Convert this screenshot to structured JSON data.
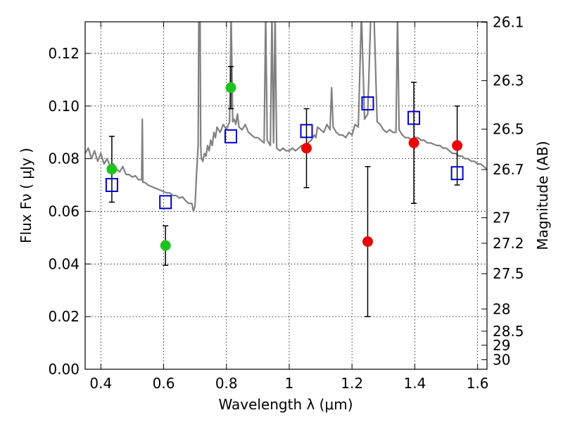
{
  "chart_data": {
    "type": "scatter",
    "xlabel": "Wavelength  λ (μm)",
    "ylabel": "Flux  Fν  ( μJy )",
    "y2label": "Magnitude (AB)",
    "xlim": [
      0.35,
      1.63
    ],
    "ylim": [
      0.0,
      0.132
    ],
    "grid": true,
    "x_ticks": [
      0.4,
      0.6,
      0.8,
      1.0,
      1.2,
      1.4,
      1.6
    ],
    "x_tick_labels": [
      "0.4",
      "0.6",
      "0.8",
      "1",
      "1.2",
      "1.4",
      "1.6"
    ],
    "y_ticks": [
      0.0,
      0.02,
      0.04,
      0.06,
      0.08,
      0.1,
      0.12
    ],
    "y_tick_labels": [
      "0.00",
      "0.02",
      "0.04",
      "0.06",
      "0.08",
      "0.10",
      "0.12"
    ],
    "y2_ticks": [
      {
        "label": "26.1",
        "mag": 26.1
      },
      {
        "label": "26.3",
        "mag": 26.3
      },
      {
        "label": "26.5",
        "mag": 26.5
      },
      {
        "label": "26.7",
        "mag": 26.7
      },
      {
        "label": "27",
        "mag": 27.0
      },
      {
        "label": "27.2",
        "mag": 27.2
      },
      {
        "label": "27.5",
        "mag": 27.5
      },
      {
        "label": "28",
        "mag": 28.0
      },
      {
        "label": "28.5",
        "mag": 28.5
      },
      {
        "label": "29",
        "mag": 29.0
      },
      {
        "label": "30",
        "mag": 30.0
      }
    ],
    "series": [
      {
        "marker": "square-open",
        "color": "#0000cc",
        "points": [
          {
            "x": 0.435,
            "y": 0.07
          },
          {
            "x": 0.606,
            "y": 0.0635
          },
          {
            "x": 0.814,
            "y": 0.0885
          },
          {
            "x": 1.055,
            "y": 0.0905
          },
          {
            "x": 1.25,
            "y": 0.101
          },
          {
            "x": 1.397,
            "y": 0.0955
          },
          {
            "x": 1.535,
            "y": 0.0745
          }
        ]
      },
      {
        "marker": "circle",
        "color": "#1ec41e",
        "points": [
          {
            "x": 0.435,
            "y": 0.076,
            "err_lo": 0.0125,
            "err_hi": 0.0125
          },
          {
            "x": 0.606,
            "y": 0.047,
            "err_lo": 0.0075,
            "err_hi": 0.0075
          },
          {
            "x": 0.814,
            "y": 0.107,
            "err_lo": 0.008,
            "err_hi": 0.008
          }
        ]
      },
      {
        "marker": "circle",
        "color": "#ee0000",
        "points": [
          {
            "x": 1.055,
            "y": 0.084,
            "err_lo": 0.015,
            "err_hi": 0.015
          },
          {
            "x": 1.25,
            "y": 0.0485,
            "err_lo": 0.0285,
            "err_hi": 0.0285
          },
          {
            "x": 1.397,
            "y": 0.086,
            "err_lo": 0.023,
            "err_hi": 0.023
          },
          {
            "x": 1.535,
            "y": 0.085,
            "err_lo": 0.015,
            "err_hi": 0.015
          }
        ]
      }
    ],
    "spectrum": {
      "color": "#808080",
      "points": [
        [
          0.35,
          0.082
        ],
        [
          0.36,
          0.084
        ],
        [
          0.37,
          0.08
        ],
        [
          0.38,
          0.083
        ],
        [
          0.39,
          0.079
        ],
        [
          0.4,
          0.082
        ],
        [
          0.41,
          0.078
        ],
        [
          0.42,
          0.08
        ],
        [
          0.43,
          0.077
        ],
        [
          0.44,
          0.078
        ],
        [
          0.45,
          0.076
        ],
        [
          0.46,
          0.075
        ],
        [
          0.47,
          0.077
        ],
        [
          0.48,
          0.074
        ],
        [
          0.49,
          0.074
        ],
        [
          0.5,
          0.073
        ],
        [
          0.51,
          0.0735
        ],
        [
          0.52,
          0.072
        ],
        [
          0.53,
          0.072
        ],
        [
          0.532,
          0.095
        ],
        [
          0.534,
          0.071
        ],
        [
          0.54,
          0.071
        ],
        [
          0.55,
          0.07
        ],
        [
          0.56,
          0.0695
        ],
        [
          0.57,
          0.069
        ],
        [
          0.58,
          0.0685
        ],
        [
          0.59,
          0.068
        ],
        [
          0.6,
          0.0675
        ],
        [
          0.61,
          0.067
        ],
        [
          0.62,
          0.067
        ],
        [
          0.63,
          0.066
        ],
        [
          0.64,
          0.066
        ],
        [
          0.65,
          0.065
        ],
        [
          0.66,
          0.0655
        ],
        [
          0.67,
          0.064
        ],
        [
          0.68,
          0.063
        ],
        [
          0.69,
          0.063
        ],
        [
          0.695,
          0.06
        ],
        [
          0.7,
          0.062
        ],
        [
          0.705,
          0.075
        ],
        [
          0.71,
          0.085
        ],
        [
          0.712,
          0.135
        ],
        [
          0.716,
          0.135
        ],
        [
          0.718,
          0.085
        ],
        [
          0.72,
          0.08
        ],
        [
          0.725,
          0.079
        ],
        [
          0.73,
          0.082
        ],
        [
          0.735,
          0.081
        ],
        [
          0.74,
          0.085
        ],
        [
          0.745,
          0.083
        ],
        [
          0.75,
          0.087
        ],
        [
          0.755,
          0.085
        ],
        [
          0.76,
          0.09
        ],
        [
          0.765,
          0.088
        ],
        [
          0.77,
          0.092
        ],
        [
          0.78,
          0.09
        ],
        [
          0.79,
          0.093
        ],
        [
          0.8,
          0.091
        ],
        [
          0.81,
          0.094
        ],
        [
          0.815,
          0.135
        ],
        [
          0.82,
          0.094
        ],
        [
          0.825,
          0.095
        ],
        [
          0.83,
          0.093
        ],
        [
          0.835,
          0.097
        ],
        [
          0.84,
          0.092
        ],
        [
          0.85,
          0.091
        ],
        [
          0.86,
          0.093
        ],
        [
          0.87,
          0.09
        ],
        [
          0.88,
          0.089
        ],
        [
          0.89,
          0.088
        ],
        [
          0.9,
          0.088
        ],
        [
          0.91,
          0.087
        ],
        [
          0.92,
          0.086
        ],
        [
          0.925,
          0.135
        ],
        [
          0.93,
          0.087
        ],
        [
          0.94,
          0.085
        ],
        [
          0.945,
          0.135
        ],
        [
          0.95,
          0.086
        ],
        [
          0.955,
          0.135
        ],
        [
          0.96,
          0.084
        ],
        [
          0.97,
          0.083
        ],
        [
          0.98,
          0.084
        ],
        [
          0.99,
          0.083
        ],
        [
          1.0,
          0.083
        ],
        [
          1.01,
          0.084
        ],
        [
          1.02,
          0.083
        ],
        [
          1.03,
          0.084
        ],
        [
          1.04,
          0.085
        ],
        [
          1.05,
          0.084
        ],
        [
          1.06,
          0.086
        ],
        [
          1.07,
          0.087
        ],
        [
          1.08,
          0.089
        ],
        [
          1.085,
          0.088
        ],
        [
          1.09,
          0.092
        ],
        [
          1.1,
          0.091
        ],
        [
          1.11,
          0.09
        ],
        [
          1.12,
          0.093
        ],
        [
          1.13,
          0.091
        ],
        [
          1.135,
          0.107
        ],
        [
          1.14,
          0.092
        ],
        [
          1.15,
          0.09
        ],
        [
          1.16,
          0.089
        ],
        [
          1.17,
          0.089
        ],
        [
          1.18,
          0.088
        ],
        [
          1.19,
          0.09
        ],
        [
          1.2,
          0.089
        ],
        [
          1.21,
          0.093
        ],
        [
          1.22,
          0.092
        ],
        [
          1.23,
          0.135
        ],
        [
          1.24,
          0.095
        ],
        [
          1.25,
          0.097
        ],
        [
          1.26,
          0.135
        ],
        [
          1.265,
          0.135
        ],
        [
          1.27,
          0.135
        ],
        [
          1.28,
          0.094
        ],
        [
          1.29,
          0.093
        ],
        [
          1.3,
          0.091
        ],
        [
          1.31,
          0.09
        ],
        [
          1.32,
          0.091
        ],
        [
          1.33,
          0.09
        ],
        [
          1.34,
          0.09
        ],
        [
          1.345,
          0.135
        ],
        [
          1.35,
          0.091
        ],
        [
          1.36,
          0.089
        ],
        [
          1.37,
          0.088
        ],
        [
          1.38,
          0.088
        ],
        [
          1.39,
          0.087
        ],
        [
          1.4,
          0.088
        ],
        [
          1.41,
          0.088
        ],
        [
          1.42,
          0.087
        ],
        [
          1.43,
          0.087
        ],
        [
          1.44,
          0.086
        ],
        [
          1.45,
          0.086
        ],
        [
          1.46,
          0.0855
        ],
        [
          1.47,
          0.085
        ],
        [
          1.48,
          0.085
        ],
        [
          1.49,
          0.084
        ],
        [
          1.5,
          0.084
        ],
        [
          1.51,
          0.083
        ],
        [
          1.52,
          0.082
        ],
        [
          1.53,
          0.082
        ],
        [
          1.54,
          0.081
        ],
        [
          1.55,
          0.081
        ],
        [
          1.56,
          0.08
        ],
        [
          1.57,
          0.08
        ],
        [
          1.58,
          0.079
        ],
        [
          1.59,
          0.079
        ],
        [
          1.6,
          0.078
        ],
        [
          1.61,
          0.078
        ],
        [
          1.62,
          0.077
        ],
        [
          1.63,
          0.076
        ]
      ]
    }
  }
}
